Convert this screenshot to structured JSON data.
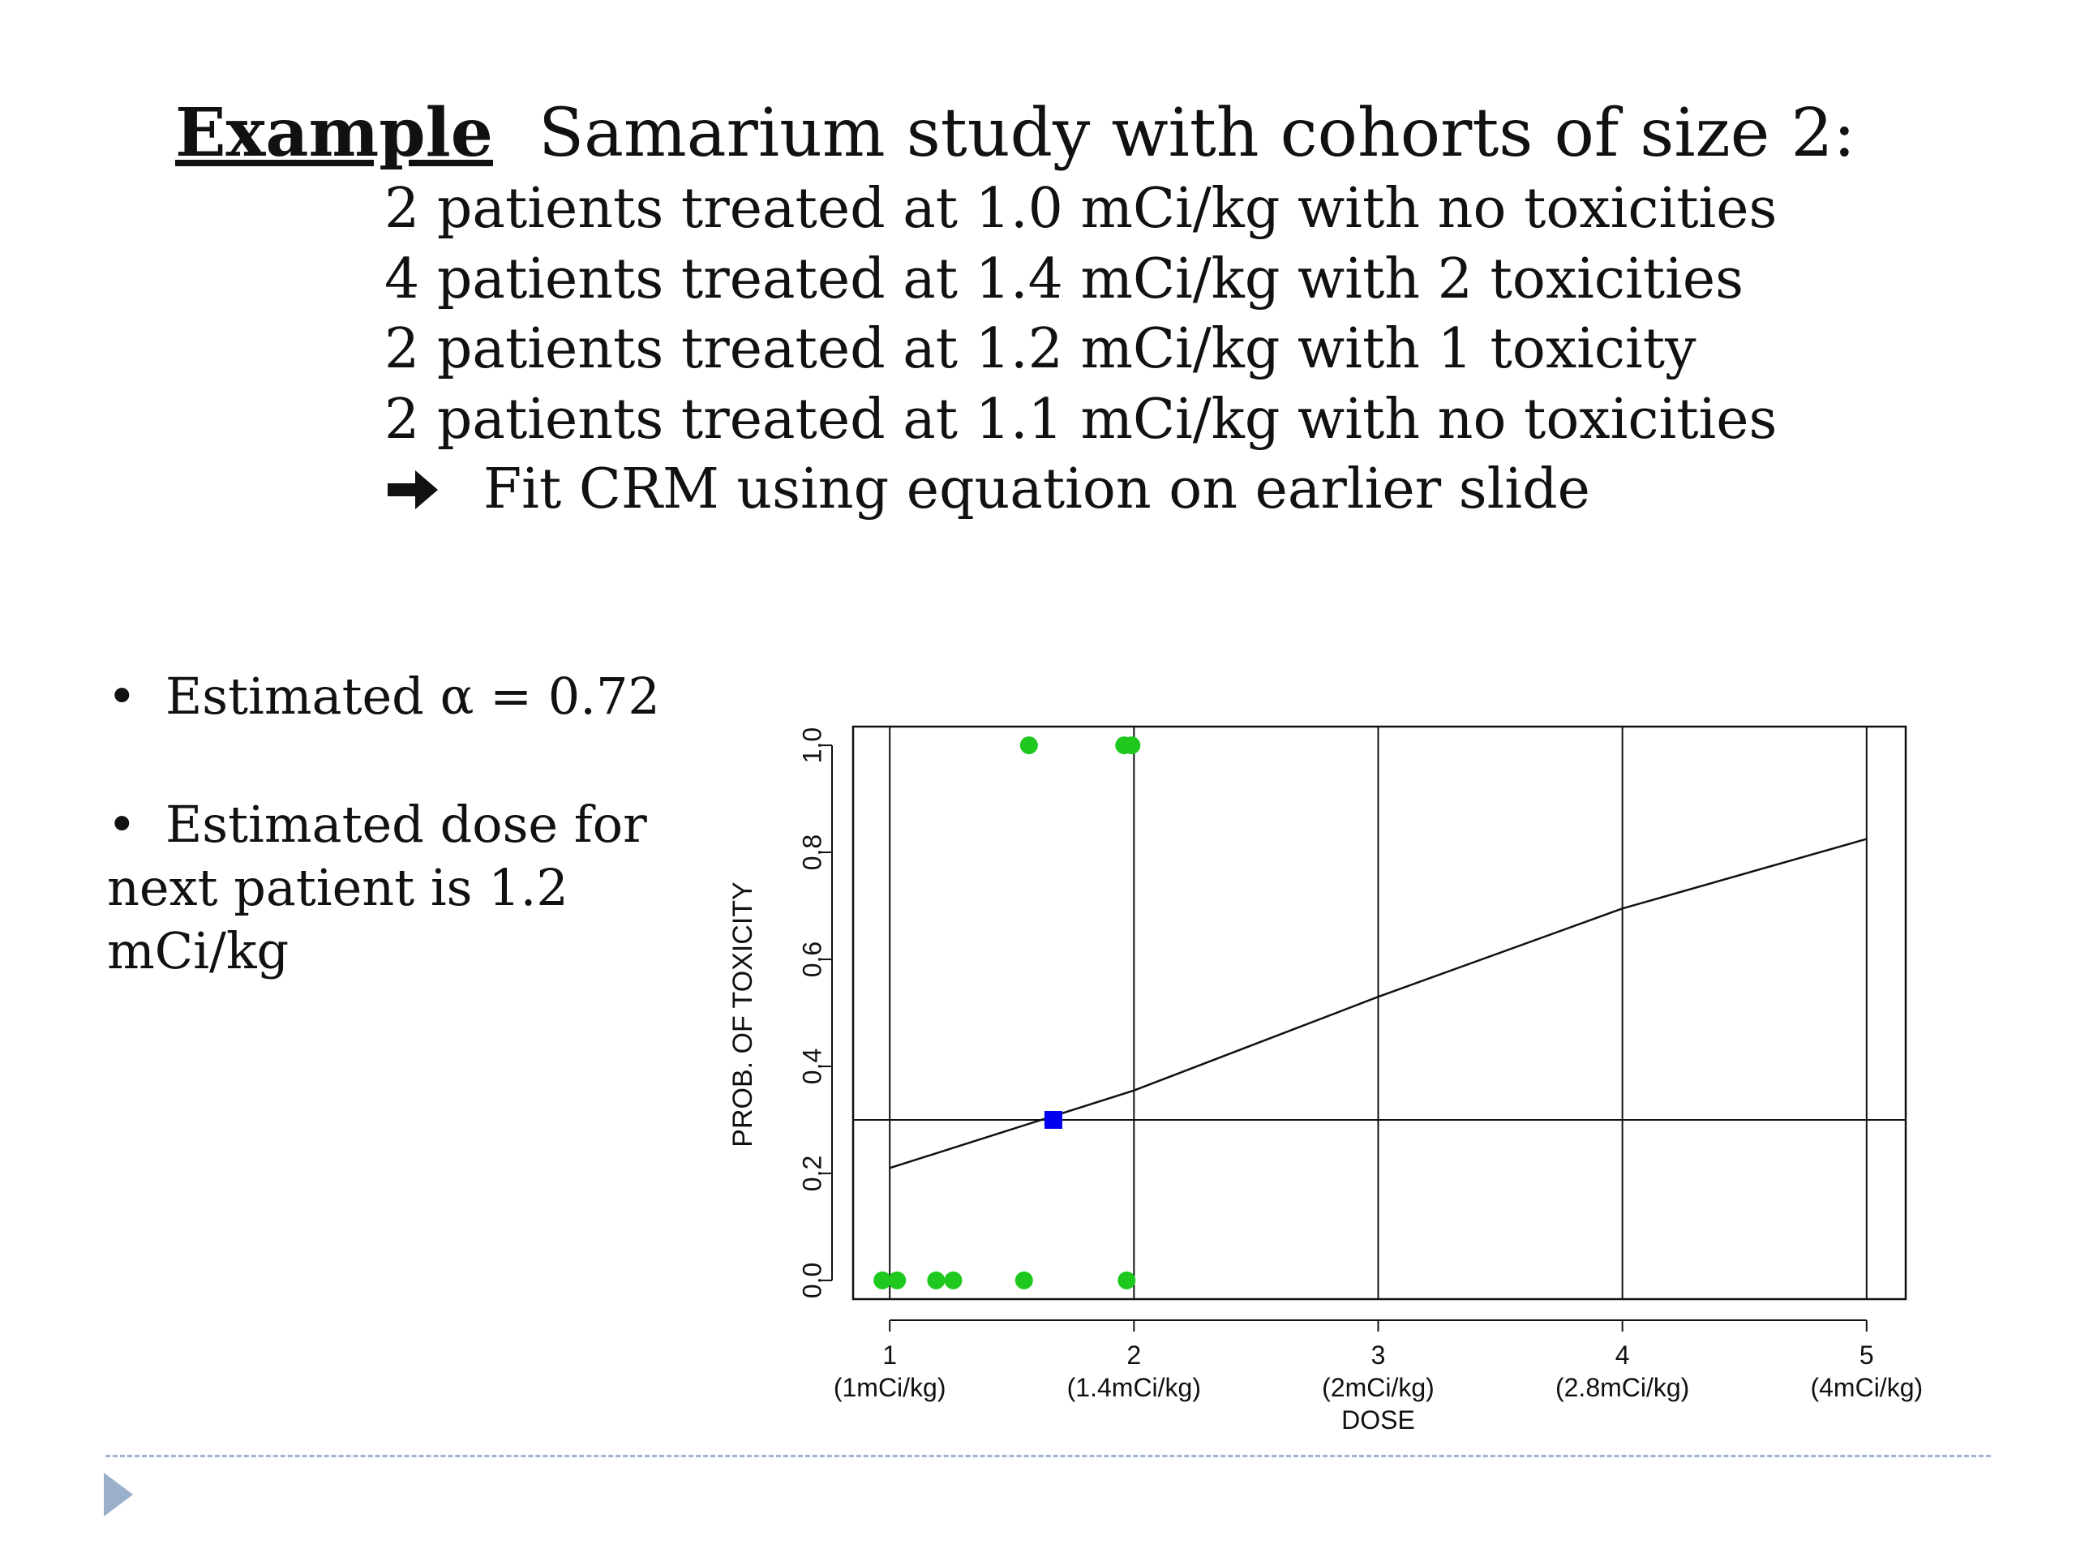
{
  "slide": {
    "title_bold": "Example",
    "title_rest": "Samarium study with cohorts of size 2:",
    "lines": [
      "2 patients treated at 1.0 mCi/kg with no toxicities",
      "4 patients treated at 1.4 mCi/kg with 2 toxicities",
      "2 patients treated at 1.2 mCi/kg with 1 toxicity",
      "2 patients treated at 1.1 mCi/kg with no toxicities"
    ],
    "arrow_line": "Fit CRM using equation on earlier slide",
    "arrow_icon": "right-arrow-icon",
    "bullets": [
      "Estimated α = 0.72",
      "Estimated dose for next patient is  1.2 mCi/kg"
    ],
    "footer_icon": "play-triangle-icon",
    "colors": {
      "points": "#1ec81e",
      "estimate": "#0000ee",
      "footer": "#9aafc9"
    }
  },
  "chart_data": {
    "type": "scatter",
    "xlabel": "DOSE",
    "ylabel": "PROB. OF TOXICITY",
    "xlim": [
      0.85,
      5.16
    ],
    "ylim": [
      -0.035,
      1.035
    ],
    "x_ticks": [
      {
        "value": 1,
        "label": "1",
        "sublabel": "(1mCi/kg)"
      },
      {
        "value": 2,
        "label": "2",
        "sublabel": "(1.4mCi/kg)"
      },
      {
        "value": 3,
        "label": "3",
        "sublabel": "(2mCi/kg)"
      },
      {
        "value": 4,
        "label": "4",
        "sublabel": "(2.8mCi/kg)"
      },
      {
        "value": 5,
        "label": "5",
        "sublabel": "(4mCi/kg)"
      }
    ],
    "y_ticks": [
      "0.0",
      "0.2",
      "0.4",
      "0.6",
      "0.8",
      "1.0"
    ],
    "vertical_gridlines_at": [
      1,
      2,
      3,
      4,
      5
    ],
    "target_line_y": 0.3,
    "curve": {
      "x": [
        1,
        2,
        3,
        4,
        5
      ],
      "y": [
        0.21,
        0.355,
        0.53,
        0.695,
        0.825
      ]
    },
    "observations": {
      "x": [
        0.97,
        1.03,
        1.19,
        1.26,
        1.55,
        1.97,
        1.57,
        1.96,
        1.99
      ],
      "y": [
        0,
        0,
        0,
        0,
        0,
        0,
        1,
        1,
        1
      ]
    },
    "estimate_point": {
      "x": 1.67,
      "y": 0.3
    }
  }
}
